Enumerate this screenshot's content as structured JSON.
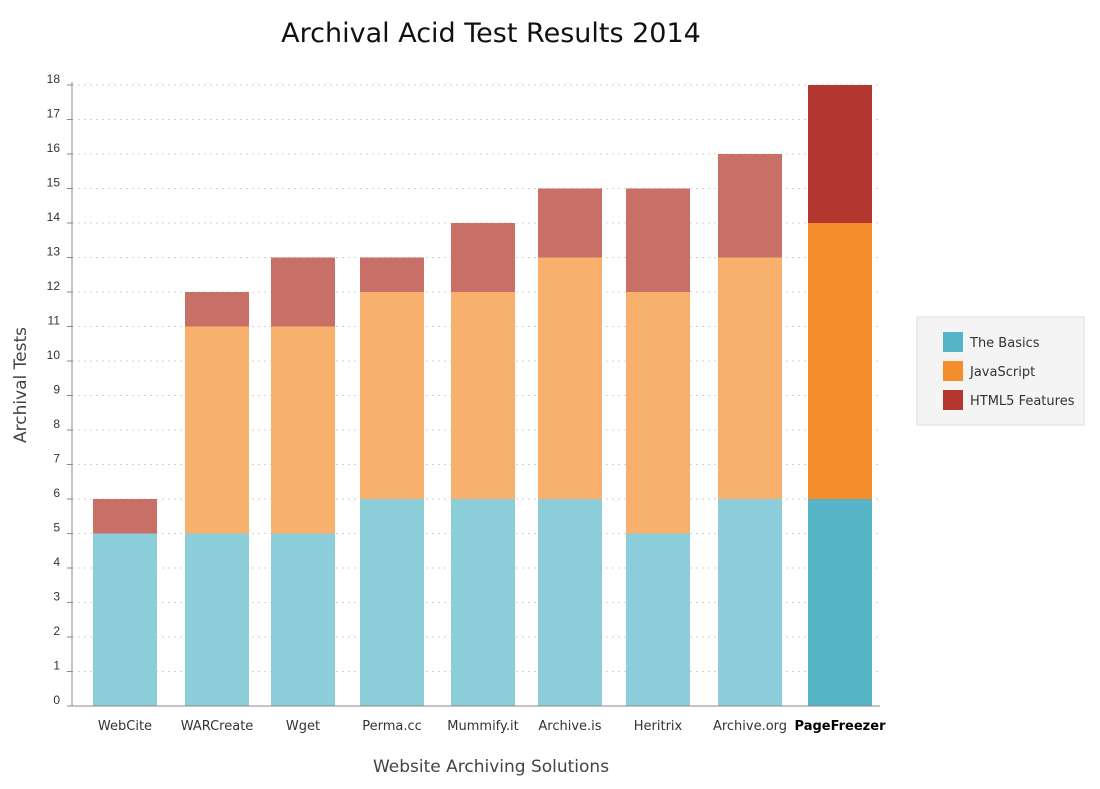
{
  "chart_data": {
    "type": "bar",
    "stacked": true,
    "title": "Archival Acid Test Results 2014",
    "xlabel": "Website Archiving Solutions",
    "ylabel": "Archival Tests",
    "ylim": [
      0,
      18
    ],
    "yticks": [
      0,
      1,
      2,
      3,
      4,
      5,
      6,
      7,
      8,
      9,
      10,
      11,
      12,
      13,
      14,
      15,
      16,
      17,
      18
    ],
    "grid": "horizontal-dotted",
    "legend_position": "right",
    "categories": [
      "WebCite",
      "WARCreate",
      "Wget",
      "Perma.cc",
      "Mummify.it",
      "Archive.is",
      "Heritrix",
      "Archive.org",
      "PageFreezer"
    ],
    "highlight_category": "PageFreezer",
    "series": [
      {
        "name": "The Basics",
        "color": "#55b4c6",
        "muted_color": "#8bcdd8",
        "values": [
          5,
          5,
          5,
          6,
          6,
          6,
          5,
          6,
          6
        ]
      },
      {
        "name": "JavaScript",
        "color": "#f48e2c",
        "muted_color": "#f8b06d",
        "values": [
          0,
          6,
          6,
          6,
          6,
          7,
          7,
          7,
          8
        ]
      },
      {
        "name": "HTML5 Features",
        "color": "#b3372e",
        "muted_color": "#c87067",
        "values": [
          1,
          1,
          2,
          1,
          2,
          2,
          3,
          3,
          4
        ]
      }
    ]
  }
}
